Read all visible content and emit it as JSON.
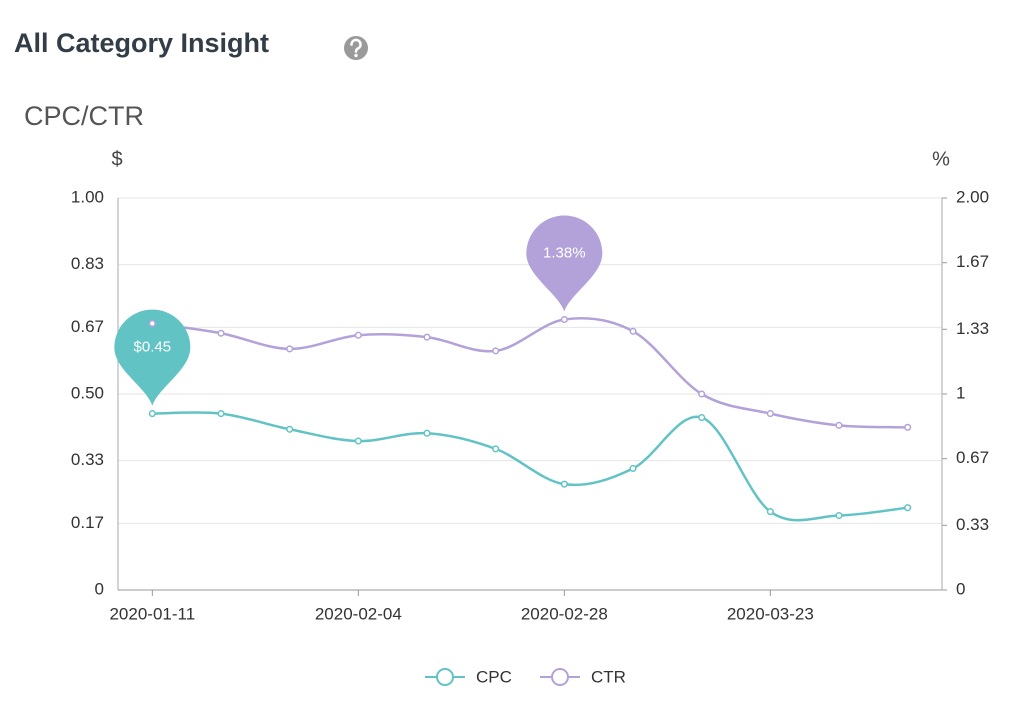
{
  "header": {
    "title": "All Category Insight"
  },
  "chart_data": {
    "type": "line",
    "title": "CPC/CTR",
    "y_axis_label": "$",
    "y2_axis_label": "%",
    "categories": [
      "2020-01-11",
      null,
      null,
      "2020-02-04",
      null,
      null,
      "2020-02-28",
      null,
      null,
      "2020-03-23",
      null,
      null
    ],
    "series": [
      {
        "name": "CPC",
        "color": "#62c3c5",
        "values": [
          0.45,
          0.45,
          0.41,
          0.38,
          0.4,
          0.36,
          0.27,
          0.31,
          0.44,
          0.2,
          0.19,
          0.21
        ],
        "value_labels": [
          "$0.45",
          null,
          null,
          null,
          null,
          null,
          null,
          null,
          null,
          null,
          null,
          null
        ]
      },
      {
        "name": "CTR",
        "color": "#b3a2da",
        "axis": "y2",
        "values": [
          1.36,
          1.31,
          1.23,
          1.3,
          1.29,
          1.22,
          1.38,
          1.32,
          1.0,
          0.9,
          0.84,
          0.83
        ],
        "value_labels": [
          null,
          null,
          null,
          null,
          null,
          null,
          "1.38%",
          null,
          null,
          null,
          null,
          null
        ]
      }
    ],
    "ylim": [
      0,
      1
    ],
    "yticks": [
      0,
      0.17,
      0.33,
      {
        "value": 0.5,
        "label": "0.50"
      },
      0.67,
      0.83,
      {
        "value": 1,
        "label": "1.00"
      }
    ],
    "y2lim": [
      0,
      2
    ],
    "y2ticks": [
      0,
      0.33,
      0.67,
      1,
      1.33,
      1.67,
      {
        "value": 2,
        "label": "2.00"
      }
    ],
    "grid": true,
    "legend": "bottom",
    "smooth": true
  }
}
